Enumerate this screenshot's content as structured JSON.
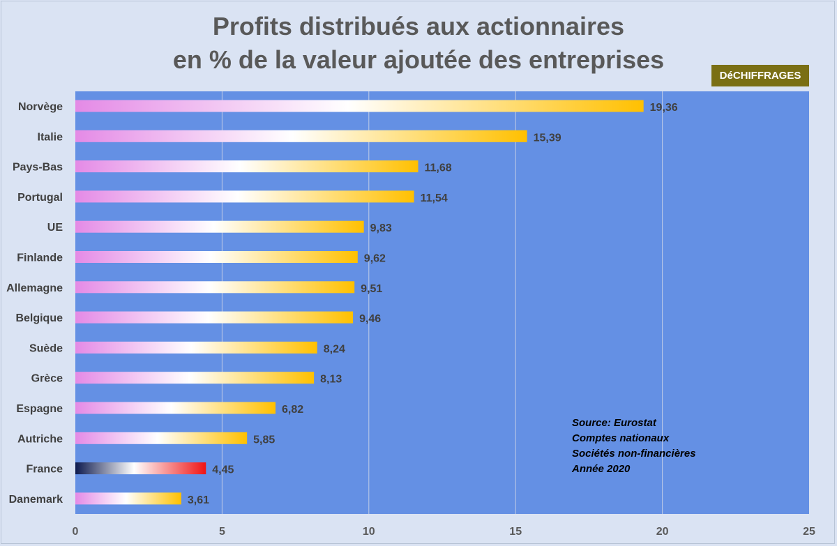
{
  "header": {
    "title_line1": "Profits distribués aux actionnaires",
    "title_line2": "en % de la valeur ajoutée des entreprises",
    "brand": "DéCHIFFRAGES"
  },
  "source_note": {
    "line1": "Source: Eurostat",
    "line2": "Comptes nationaux",
    "line3": "Sociétés non-financières",
    "line4": "Année 2020"
  },
  "colors": {
    "plot_bg": "#6490e4",
    "page_bg": "#dae3f3",
    "bar_start": "#e48ae6",
    "bar_mid": "#ffffff",
    "bar_end": "#ffc000",
    "france_start": "#0d1a4f",
    "france_end": "#f01414"
  },
  "chart_data": {
    "type": "bar",
    "orientation": "horizontal",
    "title": "Profits distribués aux actionnaires en % de la valeur ajoutée des entreprises",
    "xlabel": "",
    "ylabel": "",
    "xlim": [
      0,
      25
    ],
    "xticks": [
      "0",
      "5",
      "10",
      "15",
      "20",
      "25"
    ],
    "grid": true,
    "categories": [
      "Norvège",
      "Italie",
      "Pays-Bas",
      "Portugal",
      "UE",
      "Finlande",
      "Allemagne",
      "Belgique",
      "Suède",
      "Grèce",
      "Espagne",
      "Autriche",
      "France",
      "Danemark"
    ],
    "values": [
      19.36,
      15.39,
      11.68,
      11.54,
      9.83,
      9.62,
      9.51,
      9.46,
      8.24,
      8.13,
      6.82,
      5.85,
      4.45,
      3.61
    ],
    "value_labels": [
      "19,36",
      "15,39",
      "11,68",
      "11,54",
      "9,83",
      "9,62",
      "9,51",
      "9,46",
      "8,24",
      "8,13",
      "6,82",
      "5,85",
      "4,45",
      "3,61"
    ],
    "highlight": "France"
  }
}
